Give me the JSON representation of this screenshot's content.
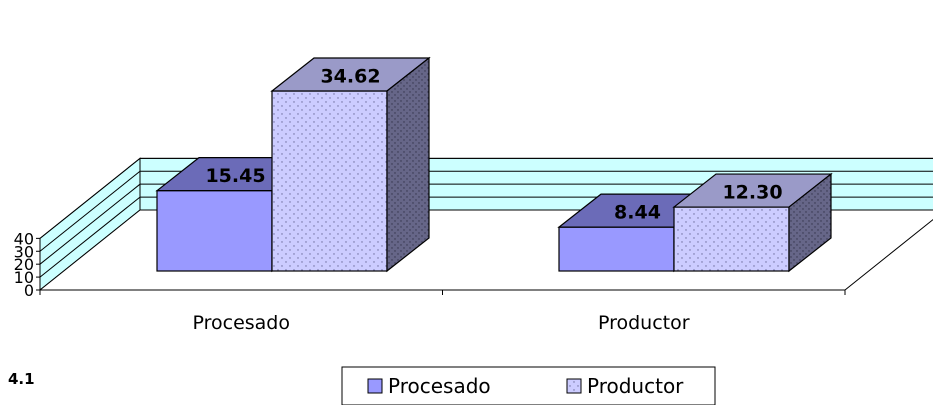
{
  "figure_label": "4.1",
  "chart_data": {
    "type": "bar",
    "categories": [
      "Procesado",
      "Productor"
    ],
    "series": [
      {
        "name": "Procesado",
        "values": [
          15.45,
          8.44
        ],
        "labels": [
          "15.45",
          "8.44"
        ],
        "color": "#9999ff",
        "pattern": "solid"
      },
      {
        "name": "Productor",
        "values": [
          34.62,
          12.3
        ],
        "labels": [
          "34.62",
          "12.30"
        ],
        "color": "#ccccff",
        "pattern": "dotted"
      }
    ],
    "y_ticks": [
      "0",
      "10",
      "20",
      "30",
      "40"
    ],
    "ylim": [
      0,
      40
    ],
    "grid": true,
    "three_d": true,
    "legend_position": "bottom",
    "wall_color": "#ccffff",
    "title": "",
    "xlabel": "",
    "ylabel": ""
  }
}
